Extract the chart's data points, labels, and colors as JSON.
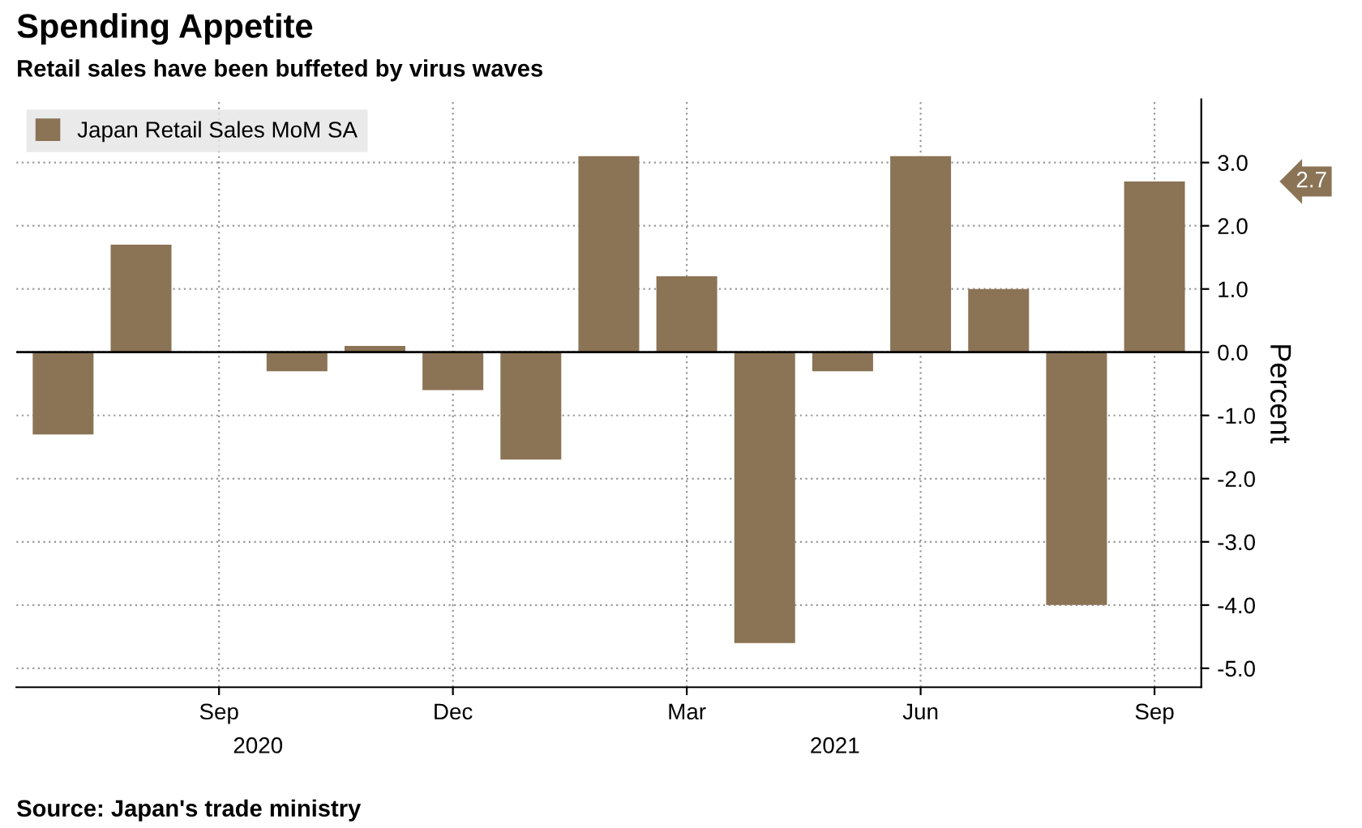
{
  "chart_data": {
    "type": "bar",
    "title": "Spending Appetite",
    "subtitle": "Retail sales have been buffeted by virus waves",
    "ylabel": "Percent",
    "categories": [
      null,
      null,
      "Sep",
      null,
      null,
      "Dec",
      null,
      null,
      "Mar",
      null,
      null,
      "Jun",
      null,
      null,
      "Sep"
    ],
    "series": [
      {
        "name": "Japan Retail Sales MoM SA",
        "color": "#8b7355",
        "values": [
          -1.3,
          1.7,
          0.0,
          -0.3,
          0.1,
          -0.6,
          -1.7,
          3.1,
          1.2,
          -4.6,
          -0.3,
          3.1,
          1.0,
          -4.0,
          2.7
        ]
      }
    ],
    "ylim": [
      -5.3,
      4.0
    ],
    "yticks": [
      {
        "value": -5,
        "label": "-5.0"
      },
      {
        "value": -4,
        "label": "-4.0"
      },
      {
        "value": -3,
        "label": "-3.0"
      },
      {
        "value": -2,
        "label": "-2.0"
      },
      {
        "value": -1,
        "label": "-1.0"
      },
      {
        "value": 0,
        "label": "0.0"
      },
      {
        "value": 1,
        "label": "1.0"
      },
      {
        "value": 2,
        "label": "2.0"
      },
      {
        "value": 3,
        "label": "3.0"
      }
    ],
    "grid": true,
    "legend": "top left",
    "annotations": [
      "2.7",
      "2020",
      "2021",
      "Source: Japan's trade ministry"
    ]
  }
}
